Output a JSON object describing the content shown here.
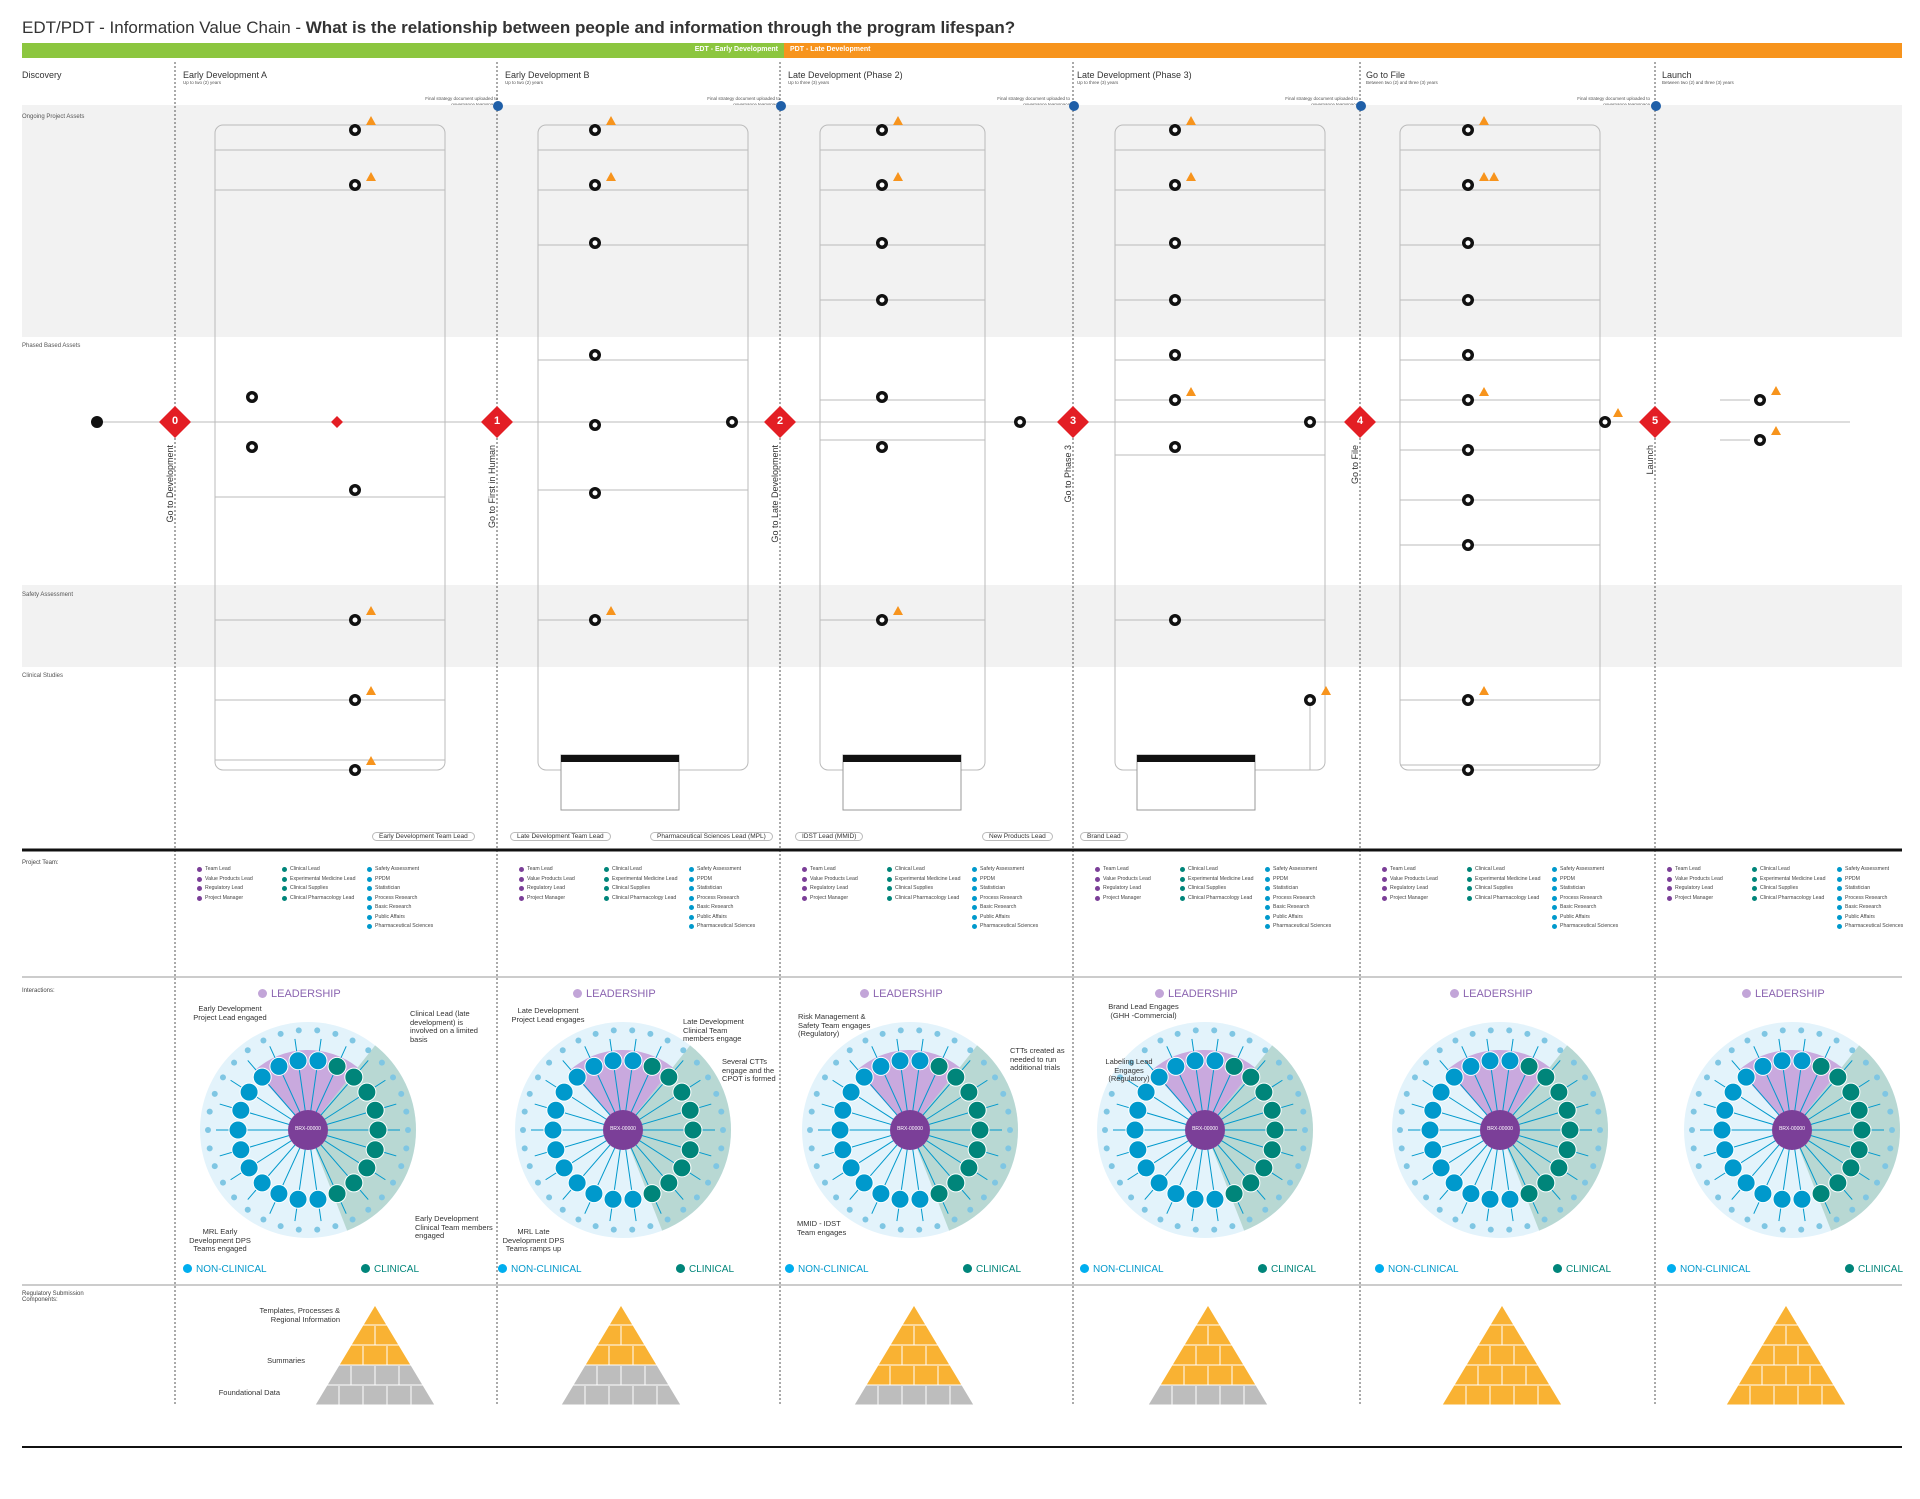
{
  "title_prefix": "EDT/PDT - Information Value Chain - ",
  "title_question": "What is the relationship between people and information through the program lifespan?",
  "phase_bars": [
    {
      "label": "EDT - Early Development",
      "color": "#8cc63f"
    },
    {
      "label": "PDT - Late Development",
      "color": "#f7941d"
    }
  ],
  "stages": [
    {
      "name": "Discovery"
    },
    {
      "name": "Early Development A",
      "duration": "Up to two (2) years"
    },
    {
      "name": "Early Development B",
      "duration": "Up to two (2) years"
    },
    {
      "name": "Late Development (Phase 2)",
      "duration": "Up to three (3) years"
    },
    {
      "name": "Late Development (Phase 3)",
      "duration": "Up to three (3) years"
    },
    {
      "name": "Go to File",
      "duration": "Between two (2) and three (3) years"
    },
    {
      "name": "Launch",
      "duration": "Between two (2) and three (3) years"
    }
  ],
  "strategy_note": "Final strategy document uploaded to governance teamspace",
  "lanes": [
    "Ongoing Project Assets",
    "Phased Based Assets",
    "Safety Assessment",
    "Clinical Studies"
  ],
  "gates": [
    {
      "num": "0",
      "label": "Go to Development"
    },
    {
      "num": "1",
      "label": "Go to First in Human"
    },
    {
      "num": "2",
      "label": "Go to Late Development"
    },
    {
      "num": "3",
      "label": "Go to Phase 3"
    },
    {
      "num": "4",
      "label": "Go to File"
    },
    {
      "num": "5",
      "label": "Launch"
    }
  ],
  "lead_tags": [
    "Early Development Team Lead",
    "Late Development Team Lead",
    "Pharmaceutical Sciences Lead (MPL)",
    "IDST Lead (MMID)",
    "New Products Lead",
    "Brand Lead"
  ],
  "section_labels": {
    "team": "Project Team:",
    "interactions": "Interactions:",
    "regulatory": "Regulatory Submission Components:"
  },
  "interactions": {
    "leadership": "LEADERSHIP",
    "non_clinical": "NON-CLINICAL",
    "clinical": "CLINICAL",
    "center": "BRX-00000"
  },
  "annotations": [
    "Early Development Project Lead engaged",
    "Clinical Lead (late development) is involved on a limited basis",
    "MRL Early Development DPS Teams engaged",
    "Early Development Clinical Team members engaged",
    "Late Development Project Lead engages",
    "Late Development Clinical Team members engage",
    "Several CTTs engage and the CPOT is formed",
    "MRL Late Development DPS Teams ramps up",
    "Risk Management & Safety Team engages (Regulatory)",
    "CTTs created as needed to run additional trials",
    "MMID - IDST Team engages",
    "Brand Lead Engages (GHH -Commercial)",
    "Labeling Lead Engages (Regulatory)"
  ],
  "pyramid_labels": [
    "Templates, Processes & Regional Information",
    "Summaries",
    "Foundational Data"
  ],
  "colors": {
    "orange": "#f7941d",
    "green": "#8cc63f",
    "red": "#e31e24",
    "purple": "#7b3f98",
    "teal": "#00857a",
    "blue": "#0099cc",
    "pyr_orange": "#f9b233",
    "pyr_grey": "#bdbdbd"
  },
  "team_columns": [
    [
      "Team Lead",
      "Value Products Lead",
      "Regulatory Lead",
      "Project Manager",
      "Clinical Lead",
      "Experimental Medicine Lead",
      "Clinical Supplies",
      "Clinical Pharmacology Lead",
      "Safety Assessment",
      "PPDM",
      "Statistician",
      "Process Research",
      "Basic Research",
      "Public Affairs",
      "Pharmaceutical Sciences"
    ]
  ]
}
